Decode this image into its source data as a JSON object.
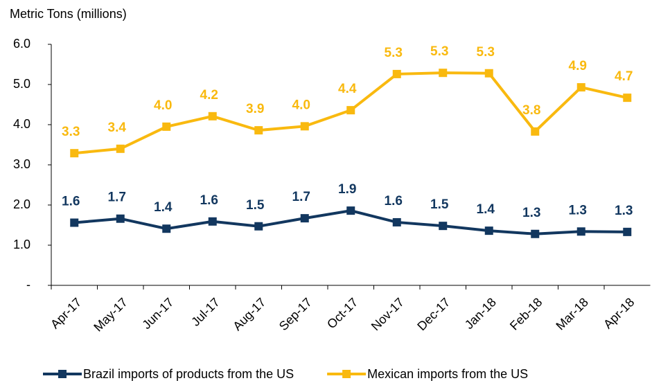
{
  "chart_data": {
    "type": "line",
    "ylabel": "Metric Tons (millions)",
    "categories": [
      "Apr-17",
      "May-17",
      "Jun-17",
      "Jul-17",
      "Aug-17",
      "Sep-17",
      "Oct-17",
      "Nov-17",
      "Dec-17",
      "Jan-18",
      "Feb-18",
      "Mar-18",
      "Apr-18"
    ],
    "series": [
      {
        "name": "Brazil imports of products from the US",
        "color": "#12375f",
        "values": [
          1.56,
          1.66,
          1.41,
          1.59,
          1.47,
          1.67,
          1.86,
          1.57,
          1.48,
          1.36,
          1.28,
          1.34,
          1.33
        ],
        "value_labels": [
          "1.6",
          "1.7",
          "1.4",
          "1.6",
          "1.5",
          "1.7",
          "1.9",
          "1.6",
          "1.5",
          "1.4",
          "1.3",
          "1.3",
          "1.3"
        ]
      },
      {
        "name": "Mexican imports from the US",
        "color": "#f9b90f",
        "values": [
          3.29,
          3.4,
          3.95,
          4.21,
          3.86,
          3.96,
          4.36,
          5.26,
          5.29,
          5.28,
          3.83,
          4.93,
          4.67
        ],
        "value_labels": [
          "3.3",
          "3.4",
          "4.0",
          "4.2",
          "3.9",
          "4.0",
          "4.4",
          "5.3",
          "5.3",
          "5.3",
          "3.8",
          "4.9",
          "4.7"
        ]
      }
    ],
    "ylim": [
      0,
      6
    ],
    "yticks": [
      {
        "value": 0,
        "label": "-"
      },
      {
        "value": 1,
        "label": "1.0"
      },
      {
        "value": 2,
        "label": "2.0"
      },
      {
        "value": 3,
        "label": "3.0"
      },
      {
        "value": 4,
        "label": "4.0"
      },
      {
        "value": 5,
        "label": "5.0"
      },
      {
        "value": 6,
        "label": "6.0"
      }
    ],
    "grid": false
  }
}
